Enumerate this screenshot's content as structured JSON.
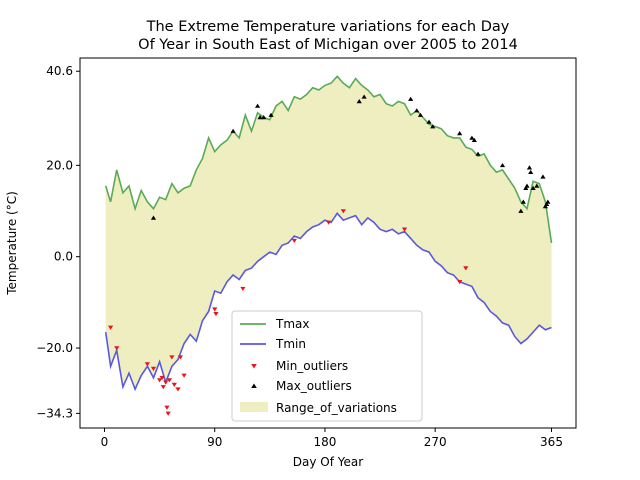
{
  "chart_data": {
    "type": "line",
    "title_lines": [
      "The Extreme Temperature variations for each Day",
      "Of Year in South East of Michigan over 2005 to 2014"
    ],
    "xlabel": "Day Of Year",
    "ylabel": "Temperature (°C)",
    "xlim": [
      -20,
      385
    ],
    "ylim": [
      -37.5,
      43.5
    ],
    "x_ticks": [
      0,
      90,
      180,
      270,
      365
    ],
    "y_ticks": [
      -34.3,
      -20.0,
      0.0,
      20.0,
      40.6
    ],
    "x_tick_labels": [
      "0",
      "90",
      "180",
      "270",
      "365"
    ],
    "y_tick_labels": [
      "−34.3",
      "−20.0",
      "0.0",
      "20.0",
      "40.6"
    ],
    "grid": false,
    "legend_position": "lower-center",
    "colors": {
      "tmax": "#5aab57",
      "tmin": "#5b57e0",
      "min_outliers": "#e8141e",
      "max_outliers": "#000000",
      "range": "#eeeec0"
    },
    "series": [
      {
        "name": "Tmax",
        "kind": "line",
        "x": [
          1,
          5,
          10,
          15,
          20,
          25,
          30,
          35,
          40,
          45,
          50,
          55,
          60,
          65,
          70,
          75,
          80,
          85,
          90,
          95,
          100,
          105,
          110,
          115,
          120,
          125,
          130,
          135,
          140,
          145,
          150,
          155,
          160,
          165,
          170,
          175,
          180,
          185,
          190,
          195,
          200,
          205,
          210,
          215,
          220,
          225,
          230,
          235,
          240,
          245,
          250,
          255,
          260,
          265,
          270,
          275,
          280,
          285,
          290,
          295,
          300,
          305,
          310,
          315,
          320,
          325,
          330,
          335,
          340,
          345,
          350,
          355,
          360,
          365
        ],
        "y": [
          15.5,
          12.0,
          19.0,
          14.0,
          15.5,
          10.5,
          14.5,
          12.0,
          10.5,
          13.0,
          12.5,
          16.0,
          14.0,
          15.0,
          15.5,
          19.0,
          21.5,
          26.0,
          23.0,
          24.5,
          25.5,
          27.5,
          26.0,
          31.0,
          27.5,
          31.5,
          30.5,
          30.0,
          33.0,
          34.0,
          32.0,
          35.0,
          34.5,
          35.5,
          37.0,
          36.5,
          37.5,
          38.0,
          39.5,
          38.0,
          37.0,
          39.0,
          37.5,
          36.5,
          35.0,
          35.5,
          33.5,
          33.0,
          34.0,
          33.5,
          31.0,
          32.0,
          30.5,
          29.0,
          28.5,
          28.0,
          26.5,
          26.0,
          26.0,
          24.0,
          23.5,
          22.0,
          22.5,
          20.0,
          18.5,
          19.0,
          17.0,
          15.0,
          12.0,
          10.5,
          16.5,
          16.0,
          12.0,
          3.0
        ]
      },
      {
        "name": "Tmin",
        "kind": "line",
        "x": [
          1,
          5,
          10,
          15,
          20,
          25,
          30,
          35,
          40,
          45,
          50,
          55,
          60,
          65,
          70,
          75,
          80,
          85,
          90,
          95,
          100,
          105,
          110,
          115,
          120,
          125,
          130,
          135,
          140,
          145,
          150,
          155,
          160,
          165,
          170,
          175,
          180,
          185,
          190,
          195,
          200,
          205,
          210,
          215,
          220,
          225,
          230,
          235,
          240,
          245,
          250,
          255,
          260,
          265,
          270,
          275,
          280,
          285,
          290,
          295,
          300,
          305,
          310,
          315,
          320,
          325,
          330,
          335,
          340,
          345,
          350,
          355,
          360,
          365
        ],
        "y": [
          -16.5,
          -24.0,
          -20.5,
          -28.5,
          -25.5,
          -29.0,
          -26.0,
          -24.0,
          -26.5,
          -23.0,
          -27.5,
          -24.0,
          -22.5,
          -19.0,
          -17.0,
          -18.5,
          -14.0,
          -12.0,
          -7.5,
          -8.0,
          -5.5,
          -4.0,
          -5.0,
          -3.0,
          -2.5,
          -1.0,
          0.0,
          1.0,
          0.5,
          2.5,
          3.0,
          4.5,
          4.0,
          5.5,
          6.5,
          7.0,
          8.0,
          7.5,
          9.5,
          8.0,
          8.5,
          9.0,
          7.0,
          8.5,
          7.5,
          6.0,
          5.5,
          6.0,
          5.0,
          5.5,
          4.0,
          2.5,
          1.5,
          1.0,
          -1.0,
          -2.0,
          -3.5,
          -4.0,
          -5.5,
          -6.0,
          -6.5,
          -9.0,
          -10.0,
          -12.0,
          -13.0,
          -14.5,
          -15.0,
          -17.5,
          -19.0,
          -18.0,
          -16.5,
          -15.0,
          -16.0,
          -15.5
        ]
      },
      {
        "name": "Min_outliers",
        "kind": "scatter",
        "x": [
          5,
          10,
          35,
          40,
          45,
          47,
          48,
          50,
          51,
          52,
          53,
          55,
          57,
          60,
          62,
          65,
          90,
          91,
          113,
          155,
          183,
          195,
          245,
          290,
          295
        ],
        "y": [
          -15.5,
          -20.0,
          -23.5,
          -24.5,
          -27.0,
          -26.5,
          -28.5,
          -27.5,
          -33.0,
          -34.3,
          -27.0,
          -22.0,
          -28.0,
          -29.0,
          -22.0,
          -26.0,
          -11.5,
          -12.5,
          -7.0,
          3.5,
          7.5,
          10.0,
          6.0,
          -5.5,
          -2.5
        ]
      },
      {
        "name": "Max_outliers",
        "kind": "scatter",
        "x": [
          40,
          105,
          125,
          127,
          130,
          136,
          208,
          212,
          250,
          255,
          258,
          265,
          268,
          290,
          300,
          302,
          305,
          325,
          340,
          342,
          344,
          345,
          347,
          348,
          350,
          353,
          358,
          360,
          361,
          362
        ],
        "y": [
          8.5,
          27.5,
          33.0,
          30.5,
          30.5,
          31.0,
          34.0,
          35.0,
          34.5,
          32.0,
          31.0,
          29.5,
          28.5,
          27.0,
          26.0,
          25.5,
          22.5,
          20.0,
          10.0,
          12.0,
          15.0,
          15.5,
          19.5,
          18.5,
          15.0,
          15.5,
          17.5,
          11.0,
          11.5,
          12.0
        ]
      },
      {
        "name": "Range_of_variations",
        "kind": "fill_between",
        "between": [
          "Tmax",
          "Tmin"
        ]
      }
    ]
  }
}
